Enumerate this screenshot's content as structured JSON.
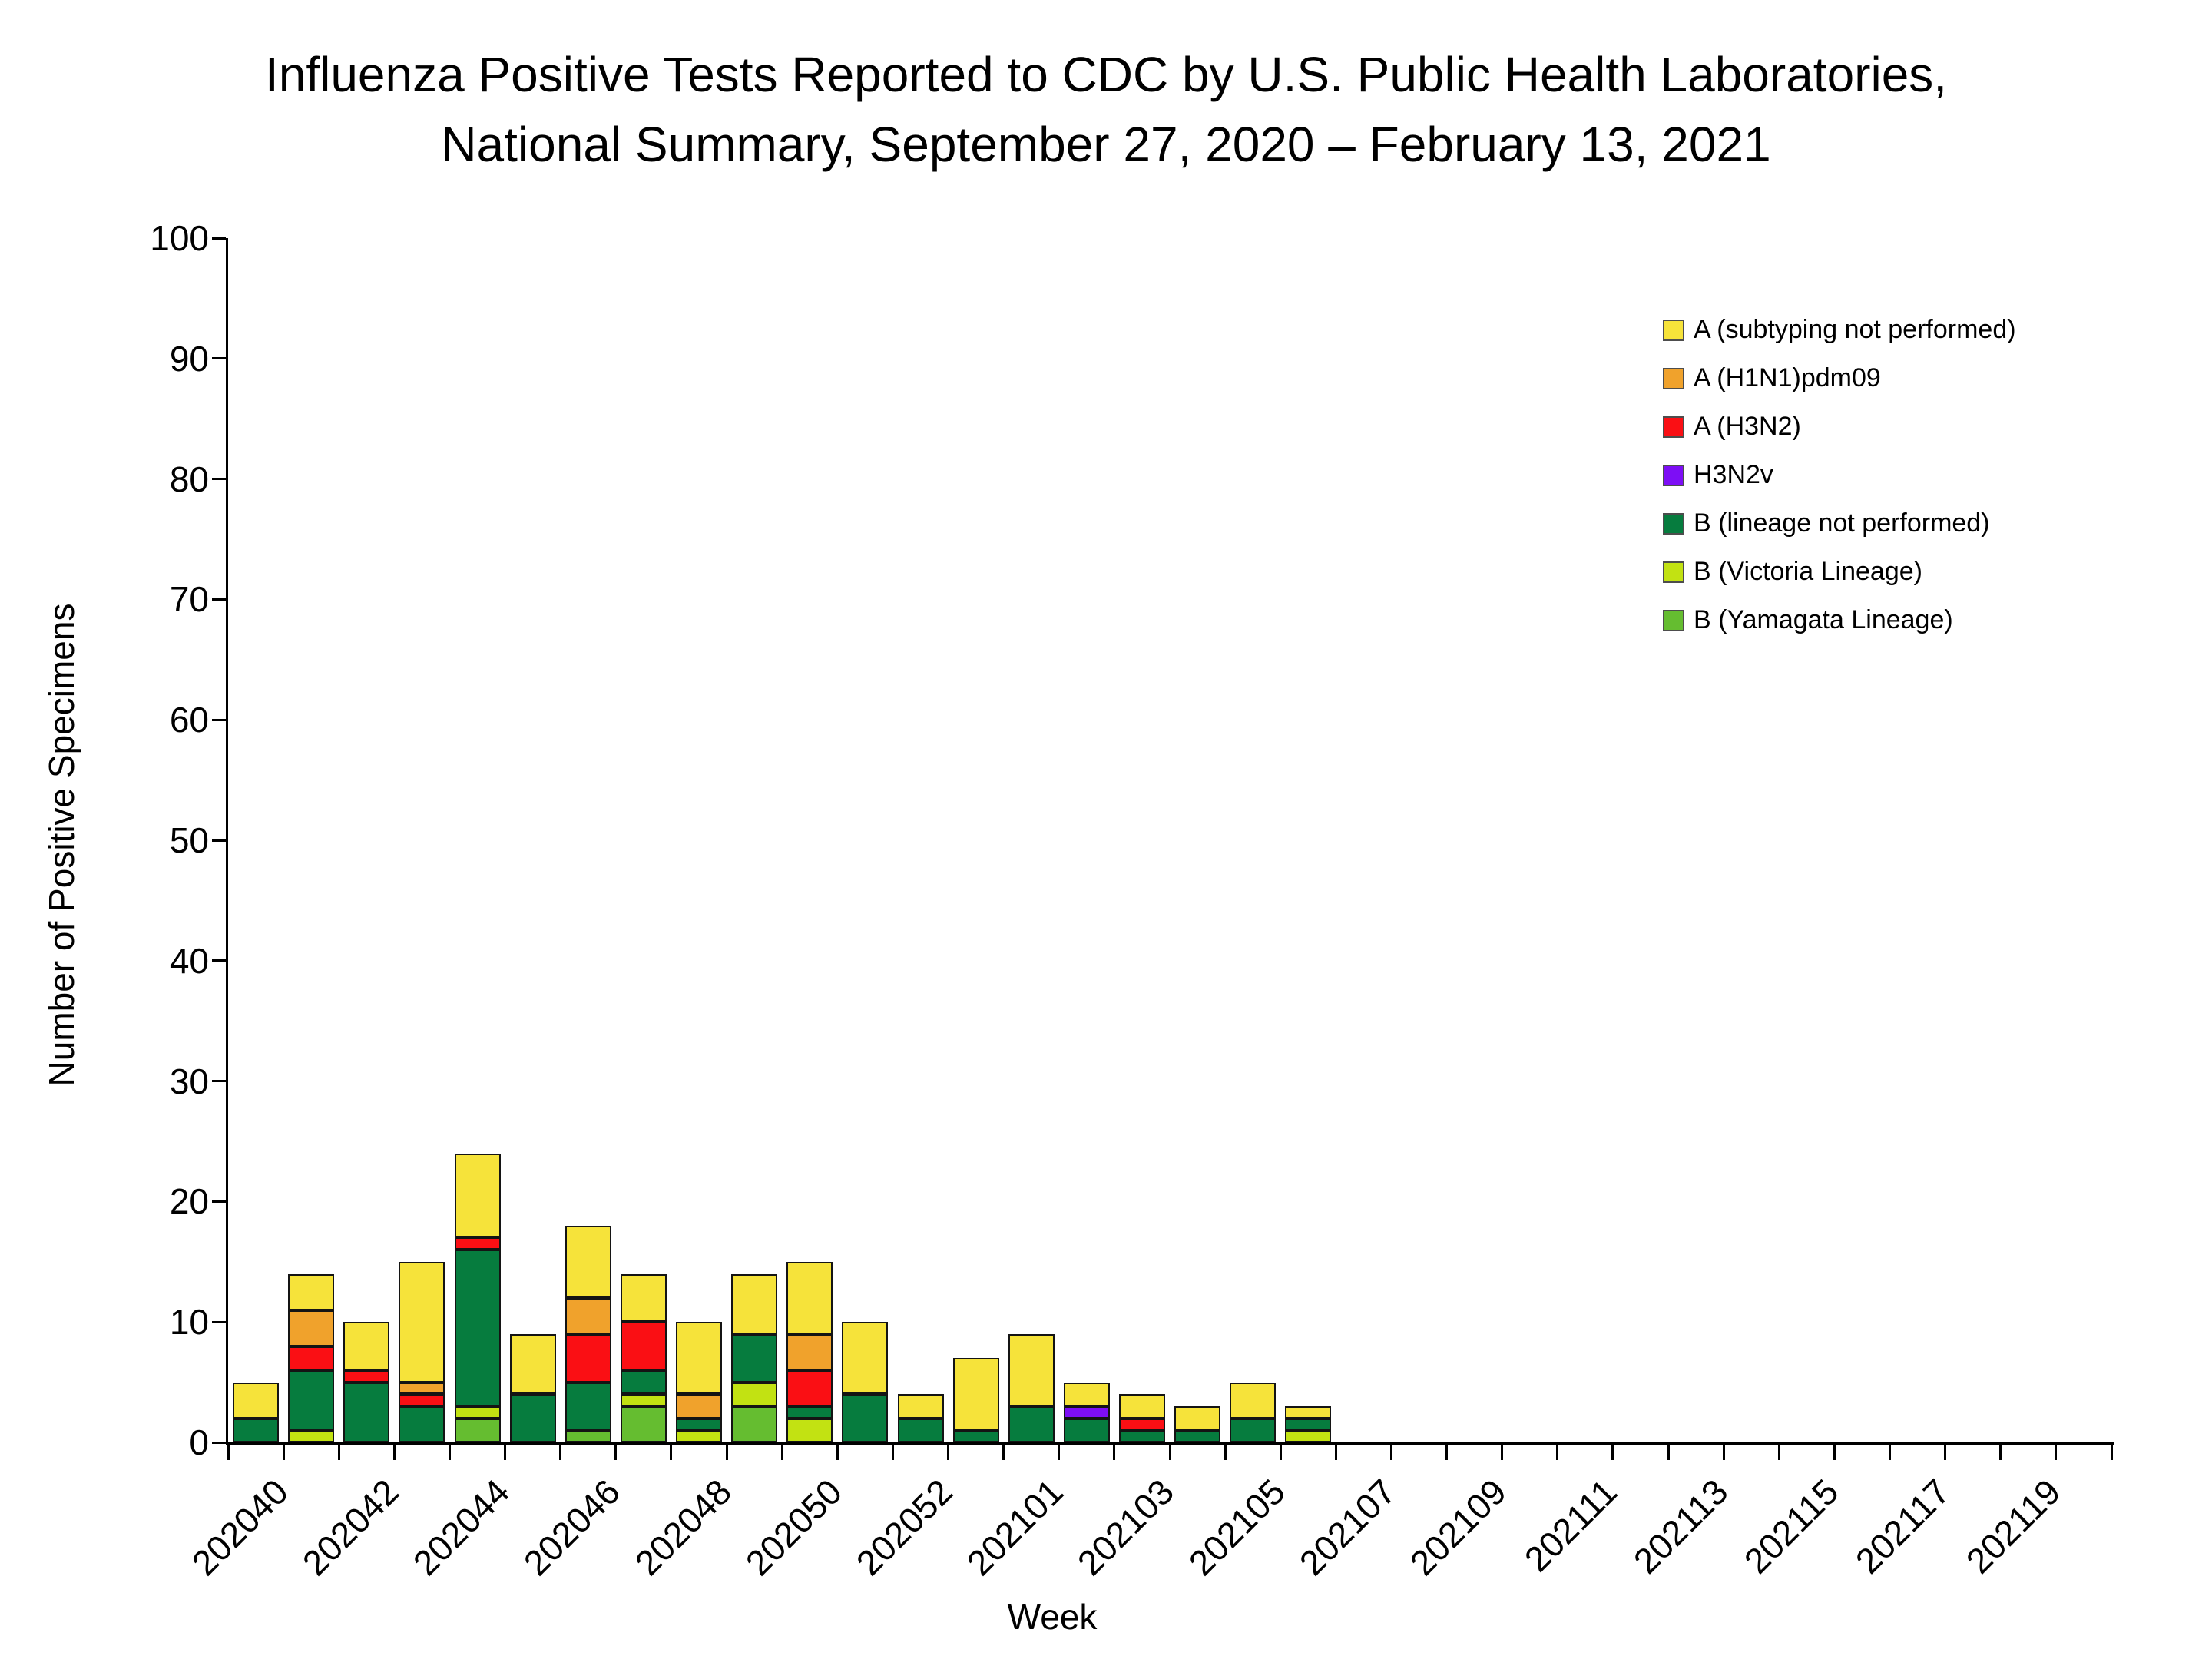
{
  "title": {
    "line1": "Influenza Positive Tests Reported to CDC by U.S. Public Health Laboratories,",
    "line2": "National Summary, September 27, 2020 – February 13, 2021"
  },
  "axes": {
    "y_title": "Number of Positive Specimens",
    "x_title": "Week",
    "y_tick_labels": [
      "0",
      "10",
      "20",
      "30",
      "40",
      "50",
      "60",
      "70",
      "80",
      "90",
      "100"
    ],
    "x_labeled_ticks": [
      "202040",
      "202042",
      "202044",
      "202046",
      "202048",
      "202050",
      "202052",
      "202101",
      "202103",
      "202105",
      "202107",
      "202109",
      "202111",
      "202113",
      "202115",
      "202117",
      "202119"
    ]
  },
  "chart_data": {
    "type": "bar",
    "stacked": true,
    "title": "Influenza Positive Tests Reported to CDC by U.S. Public Health Laboratories, National Summary, September 27, 2020 – February 13, 2021",
    "xlabel": "Week",
    "ylabel": "Number of Positive Specimens",
    "ylim": [
      0,
      100
    ],
    "ytick_step": 10,
    "grid": false,
    "legend_position": "right-inside",
    "label_every_n_categories": 2,
    "stack_order_bottom_to_top": [
      "B (Yamagata Lineage)",
      "B (Victoria Lineage)",
      "B (lineage not performed)",
      "H3N2v",
      "A (H3N2)",
      "A (H1N1)pdm09",
      "A (subtyping not performed)"
    ],
    "categories": [
      "202040",
      "202041",
      "202042",
      "202043",
      "202044",
      "202045",
      "202046",
      "202047",
      "202048",
      "202049",
      "202050",
      "202051",
      "202052",
      "202053",
      "202101",
      "202102",
      "202103",
      "202104",
      "202105",
      "202106",
      "202107",
      "202108",
      "202109",
      "202110",
      "202111",
      "202112",
      "202113",
      "202114",
      "202115",
      "202116",
      "202117",
      "202118",
      "202119",
      "202120"
    ],
    "series": [
      {
        "name": "A (subtyping not performed)",
        "color": "#F6E33A",
        "values": [
          3,
          3,
          4,
          10,
          7,
          5,
          6,
          4,
          6,
          5,
          6,
          6,
          2,
          6,
          6,
          2,
          2,
          2,
          3,
          1,
          0,
          0,
          0,
          0,
          0,
          0,
          0,
          0,
          0,
          0,
          0,
          0,
          0,
          0
        ]
      },
      {
        "name": "A (H1N1)pdm09",
        "color": "#F0A22C",
        "values": [
          0,
          3,
          0,
          1,
          0,
          0,
          3,
          0,
          2,
          0,
          3,
          0,
          0,
          0,
          0,
          0,
          0,
          0,
          0,
          0,
          0,
          0,
          0,
          0,
          0,
          0,
          0,
          0,
          0,
          0,
          0,
          0,
          0,
          0
        ]
      },
      {
        "name": "A (H3N2)",
        "color": "#FA0F14",
        "values": [
          0,
          2,
          1,
          1,
          1,
          0,
          4,
          4,
          0,
          0,
          3,
          0,
          0,
          0,
          0,
          0,
          1,
          0,
          0,
          0,
          0,
          0,
          0,
          0,
          0,
          0,
          0,
          0,
          0,
          0,
          0,
          0,
          0,
          0
        ]
      },
      {
        "name": "H3N2v",
        "color": "#7D0EF5",
        "values": [
          0,
          0,
          0,
          0,
          0,
          0,
          0,
          0,
          0,
          0,
          0,
          0,
          0,
          0,
          0,
          1,
          0,
          0,
          0,
          0,
          0,
          0,
          0,
          0,
          0,
          0,
          0,
          0,
          0,
          0,
          0,
          0,
          0,
          0
        ]
      },
      {
        "name": "B (lineage not performed)",
        "color": "#067C3E",
        "values": [
          2,
          5,
          5,
          3,
          13,
          4,
          4,
          2,
          1,
          4,
          1,
          4,
          2,
          1,
          3,
          2,
          1,
          1,
          2,
          1,
          0,
          0,
          0,
          0,
          0,
          0,
          0,
          0,
          0,
          0,
          0,
          0,
          0,
          0
        ]
      },
      {
        "name": "B (Victoria Lineage)",
        "color": "#C2E212",
        "values": [
          0,
          1,
          0,
          0,
          1,
          0,
          0,
          1,
          1,
          2,
          2,
          0,
          0,
          0,
          0,
          0,
          0,
          0,
          0,
          1,
          0,
          0,
          0,
          0,
          0,
          0,
          0,
          0,
          0,
          0,
          0,
          0,
          0,
          0
        ]
      },
      {
        "name": "B (Yamagata Lineage)",
        "color": "#65BD30",
        "values": [
          0,
          0,
          0,
          0,
          2,
          0,
          1,
          3,
          0,
          3,
          0,
          0,
          0,
          0,
          0,
          0,
          0,
          0,
          0,
          0,
          0,
          0,
          0,
          0,
          0,
          0,
          0,
          0,
          0,
          0,
          0,
          0,
          0,
          0
        ]
      }
    ]
  }
}
